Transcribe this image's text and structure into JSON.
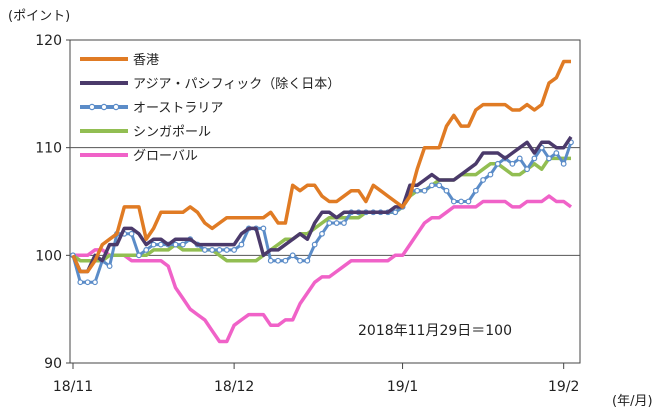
{
  "chart_data": {
    "type": "line",
    "y_unit_label": "(ポイント)",
    "x_unit_label": "(年/月)",
    "annotation": "2018年11月29日＝100",
    "ylim": [
      90,
      120
    ],
    "y_ticks": [
      90,
      100,
      110,
      120
    ],
    "x_ticks": [
      {
        "label": "18/11",
        "index": 0
      },
      {
        "label": "18/12",
        "index": 22
      },
      {
        "label": "19/1",
        "index": 45
      },
      {
        "label": "19/2",
        "index": 67
      }
    ],
    "x_count": 69,
    "reference_lines": [
      100,
      110
    ],
    "legend_position": "top-left",
    "series": [
      {
        "name": "香港",
        "color": "#E07B24",
        "marker": "none",
        "values": [
          100,
          98.5,
          98.5,
          99.5,
          101,
          101.5,
          102,
          104.5,
          104.5,
          104.5,
          101.5,
          102.5,
          104,
          104,
          104,
          104,
          104.5,
          104,
          103,
          102.5,
          103,
          103.5,
          103.5,
          103.5,
          103.5,
          103.5,
          103.5,
          104,
          103,
          103,
          106.5,
          106,
          106.5,
          106.5,
          105.5,
          105,
          105,
          105.5,
          106,
          106,
          105,
          106.5,
          106,
          105.5,
          105,
          104.5,
          105.5,
          108,
          110,
          110,
          110,
          112,
          113,
          112,
          112,
          113.5,
          114,
          114,
          114,
          114,
          113.5,
          113.5,
          114,
          113.5,
          114,
          116,
          116.5,
          118,
          118
        ]
      },
      {
        "name": "アジア・パシフィック（除く日本）",
        "color": "#4B3A6B",
        "marker": "none",
        "values": [
          100,
          98.5,
          98.5,
          100,
          99.5,
          101,
          101,
          102.5,
          102.5,
          102,
          101,
          101.5,
          101.5,
          101,
          101.5,
          101.5,
          101.5,
          101,
          101,
          101,
          101,
          101,
          101,
          102,
          102.5,
          102.5,
          100,
          100.5,
          100.5,
          101,
          101.5,
          102,
          101.5,
          103,
          104,
          104,
          103.5,
          104,
          104,
          104,
          104,
          104,
          104,
          104,
          104.5,
          104.5,
          106.5,
          106.5,
          107,
          107.5,
          107,
          107,
          107,
          107.5,
          108,
          108.5,
          109.5,
          109.5,
          109.5,
          109,
          109.5,
          110,
          110.5,
          109.5,
          110.5,
          110.5,
          110,
          110,
          111
        ]
      },
      {
        "name": "オーストラリア",
        "color": "#5B8CC8",
        "marker": "circle",
        "values": [
          100,
          97.5,
          97.5,
          97.5,
          99.5,
          99,
          102,
          102,
          102,
          100,
          100.5,
          101,
          101,
          101,
          101,
          101,
          101.5,
          101,
          100.5,
          100.5,
          100.5,
          100.5,
          100.5,
          101,
          102.5,
          102.5,
          102.5,
          99.5,
          99.5,
          99.5,
          100,
          99.5,
          99.5,
          101,
          102,
          103,
          103,
          103,
          104,
          104,
          104,
          104,
          104,
          104,
          104,
          104.5,
          106,
          106,
          106,
          106.5,
          106.5,
          106,
          105,
          105,
          105,
          106,
          107,
          107.5,
          108.5,
          109,
          108.5,
          109,
          108,
          109,
          110,
          109,
          109.5,
          108.5,
          110.5
        ]
      },
      {
        "name": "シンガポール",
        "color": "#92BE52",
        "marker": "none",
        "values": [
          100,
          99.5,
          99.5,
          99.5,
          99.5,
          100,
          100,
          100,
          100,
          100,
          100,
          100.5,
          100.5,
          100.5,
          101,
          100.5,
          100.5,
          100.5,
          100.5,
          100.5,
          100,
          99.5,
          99.5,
          99.5,
          99.5,
          99.5,
          100,
          100.5,
          101,
          101.5,
          101.5,
          102,
          102,
          102.5,
          103,
          103.5,
          103.5,
          103.5,
          103.5,
          103.5,
          104,
          104,
          104,
          104,
          104,
          104.5,
          105.5,
          106,
          106,
          106.5,
          107,
          107,
          107,
          107.5,
          107.5,
          107.5,
          108,
          108.5,
          108.5,
          108,
          107.5,
          107.5,
          108,
          108.5,
          108,
          109,
          109,
          109,
          109
        ]
      },
      {
        "name": "グローバル",
        "color": "#F062C8",
        "marker": "none",
        "values": [
          100,
          100,
          100,
          100.5,
          100.5,
          100,
          100,
          100,
          99.5,
          99.5,
          99.5,
          99.5,
          99.5,
          99,
          97,
          96,
          95,
          94.5,
          94,
          93,
          92,
          92,
          93.5,
          94,
          94.5,
          94.5,
          94.5,
          93.5,
          93.5,
          94,
          94,
          95.5,
          96.5,
          97.5,
          98,
          98,
          98.5,
          99,
          99.5,
          99.5,
          99.5,
          99.5,
          99.5,
          99.5,
          100,
          100,
          101,
          102,
          103,
          103.5,
          103.5,
          104,
          104.5,
          104.5,
          104.5,
          104.5,
          105,
          105,
          105,
          105,
          104.5,
          104.5,
          105,
          105,
          105,
          105.5,
          105,
          105,
          104.5
        ]
      }
    ]
  }
}
